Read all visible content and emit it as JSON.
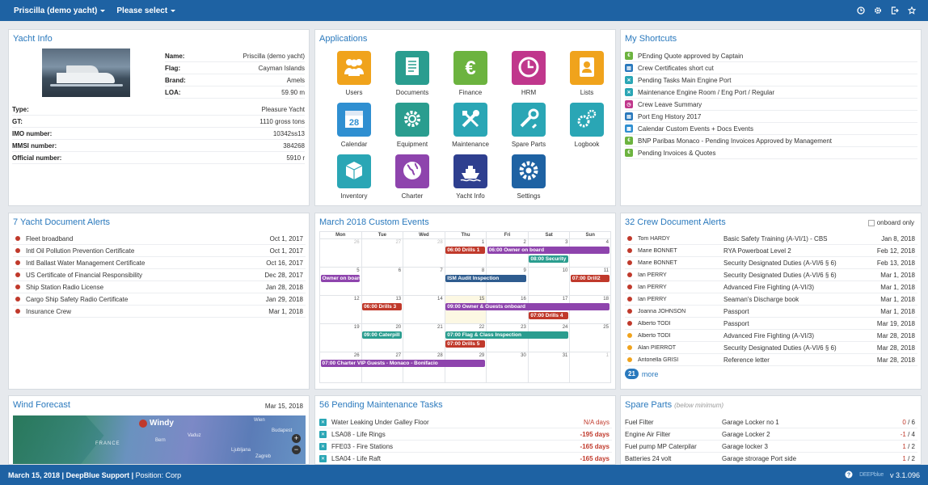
{
  "topbar": {
    "yacht_select": "Priscilla (demo yacht)",
    "menu_select": "Please select",
    "icons": [
      "clock-icon",
      "gear-icon",
      "logout-icon",
      "star-icon"
    ]
  },
  "yacht_info": {
    "title": "Yacht Info",
    "top_fields": [
      {
        "label": "Name:",
        "value": "Priscilla (demo yacht)"
      },
      {
        "label": "Flag:",
        "value": "Cayman Islands"
      },
      {
        "label": "Brand:",
        "value": "Amels"
      },
      {
        "label": "LOA:",
        "value": "59.90 m"
      }
    ],
    "fields": [
      {
        "label": "Type:",
        "value": "Pleasure Yacht"
      },
      {
        "label": "GT:",
        "value": "1110 gross tons"
      },
      {
        "label": "IMO number:",
        "value": "10342ss13"
      },
      {
        "label": "MMSI number:",
        "value": "384268"
      },
      {
        "label": "Official number:",
        "value": "5910 r"
      }
    ]
  },
  "applications": {
    "title": "Applications",
    "items": [
      {
        "label": "Users",
        "color": "#f0a31c",
        "icon": "users-icon"
      },
      {
        "label": "Documents",
        "color": "#2a9d8f",
        "icon": "documents-icon"
      },
      {
        "label": "Finance",
        "color": "#6cb33f",
        "icon": "euro-icon"
      },
      {
        "label": "HRM",
        "color": "#c0378c",
        "icon": "clock-icon"
      },
      {
        "label": "Lists",
        "color": "#f0a31c",
        "icon": "contact-list-icon"
      },
      {
        "label": "Calendar",
        "color": "#2f8fd1",
        "icon": "calendar-icon"
      },
      {
        "label": "Equipment",
        "color": "#2a9d8f",
        "icon": "gear-icon"
      },
      {
        "label": "Maintenance",
        "color": "#2aa6b5",
        "icon": "tools-icon"
      },
      {
        "label": "Spare Parts",
        "color": "#2aa6b5",
        "icon": "wrench-icon"
      },
      {
        "label": "Logbook",
        "color": "#2aa6b5",
        "icon": "cogs-icon"
      },
      {
        "label": "Inventory",
        "color": "#2aa6b5",
        "icon": "box-icon"
      },
      {
        "label": "Charter",
        "color": "#8e44ad",
        "icon": "globe-icon"
      },
      {
        "label": "Yacht Info",
        "color": "#2e3f8f",
        "icon": "yacht-icon"
      },
      {
        "label": "Settings",
        "color": "#1e62a3",
        "icon": "settings-icon"
      }
    ]
  },
  "shortcuts": {
    "title": "My Shortcuts",
    "items": [
      {
        "label": "PEnding Quote approved by Captain",
        "color": "#6cb33f",
        "glyph": "€"
      },
      {
        "label": "Crew Certificates short cut",
        "color": "#2a79bd",
        "glyph": "▤"
      },
      {
        "label": "Pending Tasks Main Engine Port",
        "color": "#2aa6b5",
        "glyph": "✕"
      },
      {
        "label": "Maintenance Engine Room / Eng Port / Regular",
        "color": "#2aa6b5",
        "glyph": "✕"
      },
      {
        "label": "Crew Leave Summary",
        "color": "#c0378c",
        "glyph": "◷"
      },
      {
        "label": "Port Eng History 2017",
        "color": "#2a79bd",
        "glyph": "▤"
      },
      {
        "label": "Calendar Custom Events + Docs Events",
        "color": "#2f8fd1",
        "glyph": "▦"
      },
      {
        "label": "BNP Paribas Monaco - Pending Invoices Approved by Management",
        "color": "#6cb33f",
        "glyph": "€"
      },
      {
        "label": "Pending Invoices & Quotes",
        "color": "#6cb33f",
        "glyph": "€"
      }
    ]
  },
  "yacht_doc_alerts": {
    "title": "7 Yacht Document Alerts",
    "items": [
      {
        "name": "Fleet broadband",
        "date": "Oct 1, 2017"
      },
      {
        "name": "Intl Oil Pollution Prevention Certificate",
        "date": "Oct 1, 2017"
      },
      {
        "name": "Intl Ballast Water Management Certificate",
        "date": "Oct 16, 2017"
      },
      {
        "name": "US Certificate of Financial Responsibility",
        "date": "Dec 28, 2017"
      },
      {
        "name": "Ship Station Radio License",
        "date": "Jan 28, 2018"
      },
      {
        "name": "Cargo Ship Safety Radio Certificate",
        "date": "Jan 29, 2018"
      },
      {
        "name": "Insurance Crew",
        "date": "Mar 1, 2018"
      }
    ]
  },
  "calendar": {
    "title": "March 2018 Custom Events",
    "days": [
      "Mon",
      "Tue",
      "Wed",
      "Thu",
      "Fri",
      "Sat",
      "Sun"
    ],
    "weeks": [
      [
        "26",
        "27",
        "28",
        "1",
        "2",
        "3",
        "4"
      ],
      [
        "5",
        "6",
        "7",
        "8",
        "9",
        "10",
        "11"
      ],
      [
        "12",
        "13",
        "14",
        "15",
        "16",
        "17",
        "18"
      ],
      [
        "19",
        "20",
        "21",
        "22",
        "23",
        "24",
        "25"
      ],
      [
        "26",
        "27",
        "28",
        "29",
        "30",
        "31",
        "1"
      ]
    ],
    "events": [
      {
        "label": "06:00 Drills 1",
        "color": "#c0392b"
      },
      {
        "label": "06:00 Owner on board",
        "color": "#8e44ad"
      },
      {
        "label": "08:00 Security",
        "color": "#2a9d8f"
      },
      {
        "label": "Owner on boan",
        "color": "#8e44ad"
      },
      {
        "label": "ISM Audit Inspection",
        "color": "#2e5c8f"
      },
      {
        "label": "07:00 Drill2",
        "color": "#c0392b"
      },
      {
        "label": "06:00 Drills 3",
        "color": "#c0392b"
      },
      {
        "label": "09:00 Owner & Guests onboard",
        "color": "#8e44ad"
      },
      {
        "label": "07:00 Drills 4",
        "color": "#c0392b"
      },
      {
        "label": "09:00 Caterpill",
        "color": "#2a9d8f"
      },
      {
        "label": "07:00 Flag & Class Inspection",
        "color": "#2a9d8f"
      },
      {
        "label": "07:00 Drills 5",
        "color": "#c0392b"
      },
      {
        "label": "07:00 Charter VIP Guests - Monaco - Bonifacio",
        "color": "#8e44ad"
      }
    ]
  },
  "crew_alerts": {
    "title": "32 Crew Document Alerts",
    "onboard_label": "onboard only",
    "more_count": "21",
    "more_label": "more",
    "items": [
      {
        "name": "Tom HARDY",
        "doc": "Basic Safety Training (A-VI/1) - CBS",
        "date": "Jan 8, 2018",
        "color": "#c0392b"
      },
      {
        "name": "Marie BONNET",
        "doc": "RYA Powerboat Level 2",
        "date": "Feb 12, 2018",
        "color": "#c0392b"
      },
      {
        "name": "Marie BONNET",
        "doc": "Security Designated Duties (A-VI/6 § 6)",
        "date": "Feb 13, 2018",
        "color": "#c0392b"
      },
      {
        "name": "Ian PERRY",
        "doc": "Security Designated Duties (A-VI/6 § 6)",
        "date": "Mar 1, 2018",
        "color": "#c0392b"
      },
      {
        "name": "Ian PERRY",
        "doc": "Advanced Fire Fighting (A-VI/3)",
        "date": "Mar 1, 2018",
        "color": "#c0392b"
      },
      {
        "name": "Ian PERRY",
        "doc": "Seaman's Discharge book",
        "date": "Mar 1, 2018",
        "color": "#c0392b"
      },
      {
        "name": "Joanna JOHNSON",
        "doc": "Passport",
        "date": "Mar 1, 2018",
        "color": "#c0392b"
      },
      {
        "name": "Alberto TODI",
        "doc": "Passport",
        "date": "Mar 19, 2018",
        "color": "#c0392b"
      },
      {
        "name": "Alberto TODI",
        "doc": "Advanced Fire Fighting (A-VI/3)",
        "date": "Mar 28, 2018",
        "color": "#f0a31c"
      },
      {
        "name": "Alan PIERROT",
        "doc": "Security Designated Duties (A-VI/6 § 6)",
        "date": "Mar 28, 2018",
        "color": "#f0a31c"
      },
      {
        "name": "Antonella GRISI",
        "doc": "Reference letter",
        "date": "Mar 28, 2018",
        "color": "#f0a31c"
      }
    ]
  },
  "wind": {
    "title": "Wind Forecast",
    "date": "Mar 15, 2018",
    "brand": "Windy",
    "places": [
      "Wien",
      "Budapest",
      "Bern",
      "Vaduz",
      "FRANCE",
      "Zagreb",
      "Ljubljana"
    ],
    "zoom_in": "+",
    "zoom_out": "−"
  },
  "maintenance": {
    "title": "56 Pending Maintenance Tasks",
    "items": [
      {
        "label": "Water Leaking Under Galley Floor",
        "days": "N/A days"
      },
      {
        "label": "LSA08 - Life Rings",
        "days": "-195 days"
      },
      {
        "label": "FFE03 - Fire Stations",
        "days": "-165 days"
      },
      {
        "label": "LSA04 - Life Raft",
        "days": "-165 days"
      }
    ]
  },
  "spare_parts": {
    "title": "Spare Parts",
    "subtitle": "(below minimum)",
    "items": [
      {
        "name": "Fuel Filter",
        "location": "Garage Locker no 1",
        "current": "0",
        "min": "6"
      },
      {
        "name": "Engine Air Filter",
        "location": "Garage Locker 2",
        "current": "-1",
        "min": "4"
      },
      {
        "name": "Fuel pump MP Caterpilar",
        "location": "Garage locker 3",
        "current": "1",
        "min": "2"
      },
      {
        "name": "Batteries 24 volt",
        "location": "Garage strorage Port side",
        "current": "1",
        "min": "2"
      }
    ]
  },
  "footer": {
    "date": "March 15, 2018",
    "company": "DeepBlue Support",
    "position_label": "Position:",
    "position": "Corp",
    "brand": "DEEPblue",
    "version": "v 3.1.096"
  }
}
